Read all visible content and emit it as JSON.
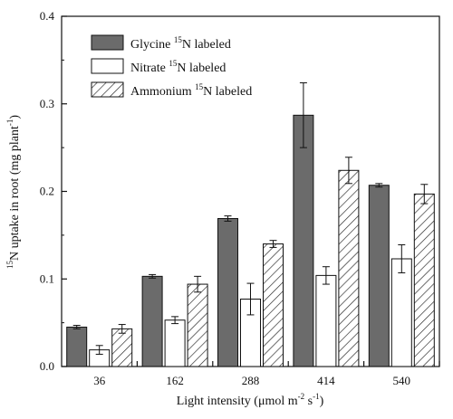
{
  "chart_data": {
    "type": "bar",
    "categories": [
      "36",
      "162",
      "288",
      "414",
      "540"
    ],
    "series": [
      {
        "name": "Glycine 15N labeled",
        "values": [
          0.045,
          0.103,
          0.169,
          0.287,
          0.207
        ],
        "errors": [
          0.002,
          0.002,
          0.003,
          0.037,
          0.002
        ],
        "style": "solid",
        "color": "#6b6b6b"
      },
      {
        "name": "Nitrate 15N labeled",
        "values": [
          0.019,
          0.053,
          0.077,
          0.104,
          0.123
        ],
        "errors": [
          0.005,
          0.004,
          0.018,
          0.01,
          0.016
        ],
        "style": "open",
        "color": "#ffffff"
      },
      {
        "name": "Ammonium 15N labeled",
        "values": [
          0.043,
          0.094,
          0.14,
          0.224,
          0.197
        ],
        "errors": [
          0.005,
          0.009,
          0.004,
          0.015,
          0.011
        ],
        "style": "hatched",
        "color": "#ffffff"
      }
    ],
    "xlabel": "Light intensity (μmol m-2 s-1)",
    "ylabel": "15N uptake in root (mg plant-1)",
    "ylim": [
      0,
      0.4
    ],
    "yticks": [
      "0.0",
      "0.1",
      "0.2",
      "0.3",
      "0.4"
    ],
    "grid": false,
    "legend_position": "top-left"
  },
  "legend": [
    {
      "prefix": "Glycine ",
      "sup": "15",
      "suffix": "N labeled"
    },
    {
      "prefix": "Nitrate ",
      "sup": "15",
      "suffix": "N labeled"
    },
    {
      "prefix": "Ammonium ",
      "sup": "15",
      "suffix": "N labeled"
    }
  ],
  "axis_text": {
    "x_pre": "Light intensity (μmol m",
    "x_sup1": "-2",
    "x_mid": " s",
    "x_sup2": "-1",
    "x_post": ")",
    "y_sup1": "15",
    "y_main": "N uptake in root (mg plant",
    "y_sup2": "-1",
    "y_post": ")"
  }
}
